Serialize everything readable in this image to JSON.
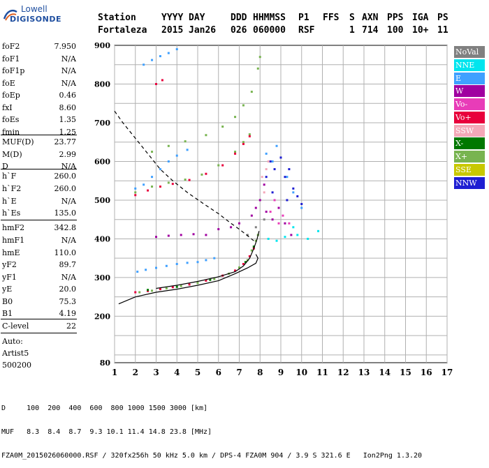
{
  "logo": {
    "top": "Lowell",
    "main": "DIGISONDE"
  },
  "header": {
    "labels": [
      "Station",
      "YYYY",
      "DAY",
      "DDD",
      "HHMMSS",
      "P1",
      "FFS",
      "S",
      "AXN",
      "PPS",
      "IGA",
      "PS"
    ],
    "values": [
      "Fortaleza",
      "2015",
      "Jan26",
      "026",
      "060000",
      "RSF",
      "1",
      "714",
      "100",
      "10+",
      "11"
    ]
  },
  "params": [
    {
      "label": "foF2",
      "value": "7.950"
    },
    {
      "label": "foF1",
      "value": "N/A"
    },
    {
      "label": "foF1p",
      "value": "N/A"
    },
    {
      "label": "foE",
      "value": "N/A"
    },
    {
      "label": "foEp",
      "value": "0.46"
    },
    {
      "label": "fxI",
      "value": "8.60"
    },
    {
      "label": "foEs",
      "value": "1.35"
    },
    {
      "label": "fmin",
      "value": "1.25"
    },
    {
      "label": "MUF(D)",
      "value": "23.77"
    },
    {
      "label": "M(D)",
      "value": "2.99"
    },
    {
      "label": "D",
      "value": "N/A"
    },
    {
      "label": "h`F",
      "value": "260.0"
    },
    {
      "label": "h`F2",
      "value": "260.0"
    },
    {
      "label": "h`E",
      "value": "N/A"
    },
    {
      "label": "h`Es",
      "value": "135.0"
    },
    {
      "label": "hmF2",
      "value": "342.8"
    },
    {
      "label": "hmF1",
      "value": "N/A"
    },
    {
      "label": "hmE",
      "value": "110.0"
    },
    {
      "label": "yF2",
      "value": "89.7"
    },
    {
      "label": "yF1",
      "value": "N/A"
    },
    {
      "label": "yE",
      "value": "20.0"
    },
    {
      "label": "B0",
      "value": "75.3"
    },
    {
      "label": "B1",
      "value": "4.19"
    },
    {
      "label": "C-level",
      "value": "22"
    }
  ],
  "auto": {
    "line1": "Auto:",
    "line2": "Artist5",
    "line3": "500200"
  },
  "legend": [
    {
      "label": "NoVal",
      "color": "#808080"
    },
    {
      "label": "NNE",
      "color": "#00e5ee"
    },
    {
      "label": "E",
      "color": "#3fa0ff"
    },
    {
      "label": "W",
      "color": "#a000a0"
    },
    {
      "label": "Vo-",
      "color": "#e83cb8"
    },
    {
      "label": "Vo+",
      "color": "#e8003c"
    },
    {
      "label": "SSW",
      "color": "#f4a8b8"
    },
    {
      "label": "X-",
      "color": "#007800"
    },
    {
      "label": "X+",
      "color": "#78b450"
    },
    {
      "label": "SSE",
      "color": "#c8c800"
    },
    {
      "label": "NNW",
      "color": "#1e1ed2"
    }
  ],
  "footer": {
    "line1": "D     100  200  400  600  800 1000 1500 3000 [km]",
    "line2": "MUF   8.3  8.4  8.7  9.3 10.1 11.4 14.8 23.8 [MHz]",
    "line3": "FZA0M_2015026060000.RSF / 320fx256h 50 kHz 5.0 km / DPS-4 FZA0M 904 / 3.9 S 321.6 E   Ion2Png 1.3.20"
  },
  "chart_data": {
    "type": "scatter",
    "xlim": [
      1,
      17
    ],
    "ylim": [
      80,
      900
    ],
    "x_ticks": [
      "1",
      "2",
      "3",
      "4",
      "5",
      "6",
      "7",
      "8",
      "9",
      "10",
      "11",
      "12",
      "13",
      "14",
      "15",
      "16",
      "17"
    ],
    "y_ticks": [
      "80",
      "200",
      "300",
      "400",
      "500",
      "600",
      "700",
      "800",
      "900"
    ],
    "y_tick_values": [
      80,
      200,
      300,
      400,
      500,
      600,
      700,
      800,
      900
    ],
    "grid": true,
    "series": [
      {
        "name": "X+",
        "color": "#78b450",
        "points": [
          [
            2.2,
            262
          ],
          [
            2.8,
            266
          ],
          [
            3.5,
            272
          ],
          [
            4.2,
            278
          ],
          [
            5.0,
            286
          ],
          [
            5.8,
            296
          ],
          [
            6.5,
            310
          ],
          [
            7.0,
            326
          ],
          [
            7.4,
            345
          ],
          [
            7.6,
            370
          ],
          [
            7.8,
            395
          ],
          [
            7.9,
            410
          ],
          [
            2.0,
            520
          ],
          [
            2.8,
            535
          ],
          [
            3.6,
            545
          ],
          [
            4.4,
            553
          ],
          [
            5.2,
            566
          ],
          [
            6.0,
            590
          ],
          [
            6.8,
            625
          ],
          [
            7.2,
            650
          ],
          [
            7.5,
            670
          ],
          [
            2.8,
            625
          ],
          [
            3.6,
            640
          ],
          [
            4.4,
            652
          ],
          [
            5.4,
            668
          ],
          [
            6.2,
            690
          ],
          [
            6.8,
            715
          ],
          [
            7.2,
            745
          ],
          [
            7.6,
            780
          ],
          [
            7.9,
            840
          ],
          [
            8.0,
            870
          ]
        ]
      },
      {
        "name": "Vo+",
        "color": "#e8003c",
        "points": [
          [
            2.0,
            262
          ],
          [
            2.6,
            265
          ],
          [
            3.2,
            270
          ],
          [
            3.8,
            275
          ],
          [
            4.6,
            282
          ],
          [
            5.4,
            292
          ],
          [
            6.2,
            305
          ],
          [
            6.8,
            318
          ],
          [
            7.2,
            335
          ],
          [
            7.5,
            355
          ],
          [
            7.7,
            375
          ],
          [
            2.0,
            513
          ],
          [
            2.6,
            525
          ],
          [
            3.2,
            535
          ],
          [
            3.8,
            542
          ],
          [
            4.6,
            552
          ],
          [
            5.4,
            568
          ],
          [
            6.2,
            590
          ],
          [
            6.8,
            620
          ],
          [
            7.2,
            645
          ],
          [
            7.5,
            665
          ],
          [
            3.0,
            800
          ],
          [
            3.3,
            810
          ]
        ]
      },
      {
        "name": "E",
        "color": "#3fa0ff",
        "points": [
          [
            2.1,
            315
          ],
          [
            2.5,
            320
          ],
          [
            3.0,
            325
          ],
          [
            3.5,
            330
          ],
          [
            4.0,
            335
          ],
          [
            4.5,
            338
          ],
          [
            5.0,
            340
          ],
          [
            5.4,
            345
          ],
          [
            5.8,
            350
          ],
          [
            2.0,
            530
          ],
          [
            2.4,
            540
          ],
          [
            2.8,
            560
          ],
          [
            3.2,
            580
          ],
          [
            3.6,
            600
          ],
          [
            4.0,
            615
          ],
          [
            4.5,
            630
          ],
          [
            2.4,
            850
          ],
          [
            2.8,
            862
          ],
          [
            3.2,
            872
          ],
          [
            3.6,
            880
          ],
          [
            4.0,
            890
          ],
          [
            8.3,
            620
          ],
          [
            8.6,
            600
          ],
          [
            8.8,
            640
          ],
          [
            9.3,
            560
          ],
          [
            9.6,
            520
          ],
          [
            10.0,
            480
          ]
        ]
      },
      {
        "name": "W",
        "color": "#a000a0",
        "points": [
          [
            3.0,
            405
          ],
          [
            3.6,
            408
          ],
          [
            4.2,
            410
          ],
          [
            4.8,
            412
          ],
          [
            5.4,
            410
          ],
          [
            6.0,
            425
          ],
          [
            6.6,
            430
          ],
          [
            7.0,
            440
          ],
          [
            7.6,
            460
          ],
          [
            7.8,
            480
          ],
          [
            8.0,
            500
          ],
          [
            8.3,
            470
          ],
          [
            8.6,
            450
          ],
          [
            8.9,
            480
          ],
          [
            9.2,
            440
          ],
          [
            9.5,
            410
          ],
          [
            8.2,
            540
          ]
        ]
      },
      {
        "name": "NNE",
        "color": "#00e5ee",
        "points": [
          [
            8.4,
            400
          ],
          [
            8.8,
            395
          ],
          [
            9.2,
            405
          ],
          [
            9.8,
            410
          ],
          [
            10.3,
            400
          ],
          [
            10.8,
            420
          ],
          [
            9.6,
            430
          ]
        ]
      },
      {
        "name": "NNW",
        "color": "#1e1ed2",
        "points": [
          [
            8.3,
            560
          ],
          [
            8.5,
            600
          ],
          [
            8.7,
            580
          ],
          [
            9.0,
            610
          ],
          [
            9.2,
            560
          ],
          [
            9.4,
            580
          ],
          [
            9.6,
            530
          ],
          [
            9.8,
            510
          ],
          [
            10.0,
            490
          ],
          [
            8.6,
            520
          ],
          [
            9.3,
            500
          ]
        ]
      },
      {
        "name": "SSW",
        "color": "#f4a8b8",
        "points": [
          [
            8.1,
            560
          ],
          [
            8.3,
            580
          ],
          [
            8.4,
            600
          ],
          [
            8.2,
            520
          ]
        ]
      },
      {
        "name": "Vo-",
        "color": "#e83cb8",
        "points": [
          [
            8.5,
            470
          ],
          [
            8.9,
            440
          ],
          [
            9.1,
            460
          ],
          [
            9.4,
            440
          ],
          [
            8.7,
            500
          ]
        ]
      },
      {
        "name": "X-",
        "color": "#007800",
        "points": [
          [
            2.6,
            268
          ],
          [
            4.0,
            276
          ],
          [
            5.6,
            294
          ],
          [
            7.3,
            340
          ],
          [
            7.7,
            380
          ]
        ]
      },
      {
        "name": "NoVal",
        "color": "#808080",
        "points": [
          [
            7.4,
            410
          ],
          [
            7.8,
            430
          ],
          [
            8.2,
            450
          ]
        ]
      }
    ],
    "lines": [
      {
        "style": "solid",
        "color": "#000000",
        "points": [
          [
            1.2,
            232
          ],
          [
            2.0,
            250
          ],
          [
            3.0,
            262
          ],
          [
            4.0,
            270
          ],
          [
            5.0,
            280
          ],
          [
            6.0,
            292
          ],
          [
            6.8,
            310
          ],
          [
            7.4,
            325
          ],
          [
            7.8,
            337
          ],
          [
            7.9,
            350
          ],
          [
            7.8,
            360
          ]
        ]
      },
      {
        "style": "solid",
        "color": "#000000",
        "points": [
          [
            3.0,
            272
          ],
          [
            4.0,
            280
          ],
          [
            5.0,
            290
          ],
          [
            6.0,
            302
          ],
          [
            6.8,
            315
          ],
          [
            7.2,
            330
          ],
          [
            7.5,
            350
          ],
          [
            7.7,
            375
          ],
          [
            7.85,
            398
          ],
          [
            7.95,
            420
          ]
        ]
      },
      {
        "style": "dashed",
        "color": "#000000",
        "points": [
          [
            1.0,
            730
          ],
          [
            1.4,
            700
          ],
          [
            2.0,
            660
          ],
          [
            2.6,
            620
          ],
          [
            3.2,
            580
          ],
          [
            3.8,
            550
          ],
          [
            4.5,
            520
          ],
          [
            5.3,
            490
          ],
          [
            6.0,
            465
          ],
          [
            6.6,
            440
          ],
          [
            7.0,
            425
          ],
          [
            7.4,
            408
          ],
          [
            7.7,
            395
          ]
        ]
      }
    ]
  }
}
